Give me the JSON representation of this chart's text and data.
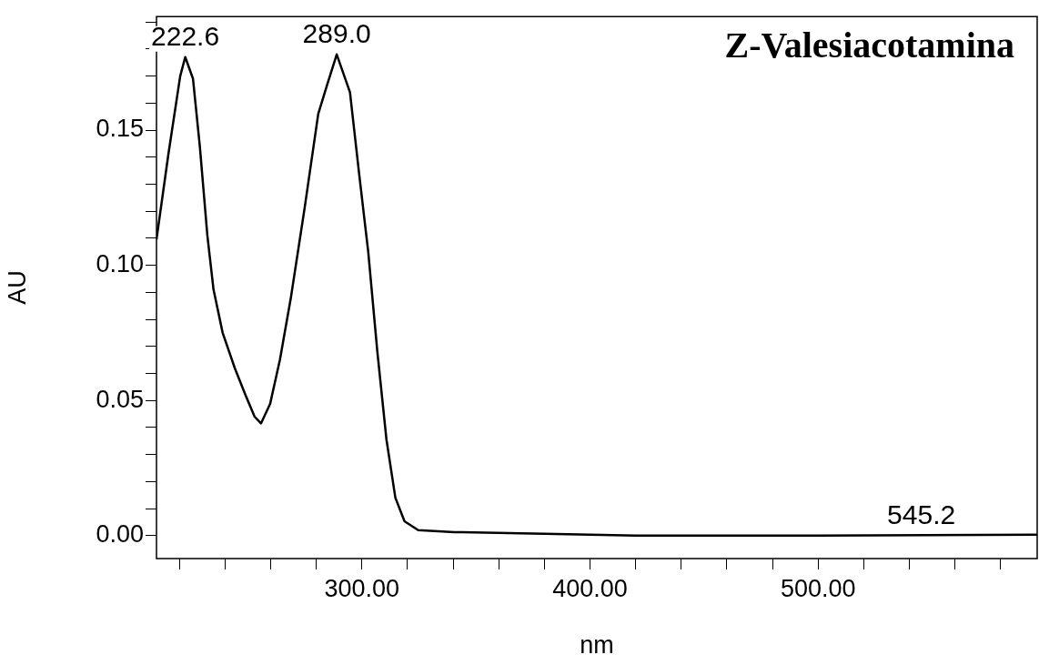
{
  "chart_data": {
    "type": "line",
    "title": "Z-Valesiacotamina",
    "xlabel": "nm",
    "ylabel": "AU",
    "x": [
      210,
      215.2,
      220.4,
      222.6,
      226,
      229,
      232.3,
      235,
      239,
      244.3,
      249,
      253,
      255.8,
      259.8,
      264.1,
      268.9,
      274.9,
      280.9,
      284.9,
      289.0,
      294.8,
      298.8,
      302.8,
      306.8,
      310.8,
      314.7,
      318.7,
      324.7,
      340.6,
      380,
      420,
      500,
      596
    ],
    "series": [
      {
        "color": "#000000",
        "values": [
          0.1095,
          0.141,
          0.17,
          0.177,
          0.169,
          0.144,
          0.111,
          0.091,
          0.075,
          0.062,
          0.052,
          0.044,
          0.0415,
          0.0487,
          0.065,
          0.088,
          0.121,
          0.156,
          0.167,
          0.178,
          0.164,
          0.134,
          0.105,
          0.068,
          0.0355,
          0.014,
          0.0053,
          0.002,
          0.0013,
          0.0007,
          0,
          0,
          0.0003
        ]
      }
    ],
    "annotations": [
      {
        "text": "222.6",
        "x": 222.6,
        "y": 0.177
      },
      {
        "text": "289.0",
        "x": 289.0,
        "y": 0.178
      },
      {
        "text": "545.2",
        "x": 545.2,
        "y": 0
      }
    ],
    "xlim": [
      210,
      596
    ],
    "xticks": [
      {
        "value": 220,
        "label": null
      },
      {
        "value": 240,
        "label": null
      },
      {
        "value": 260,
        "label": null
      },
      {
        "value": 280,
        "label": null
      },
      {
        "value": 300,
        "label": "300.00"
      },
      {
        "value": 320,
        "label": null
      },
      {
        "value": 340,
        "label": null
      },
      {
        "value": 360,
        "label": null
      },
      {
        "value": 380,
        "label": null
      },
      {
        "value": 400,
        "label": "400.00"
      },
      {
        "value": 420,
        "label": null
      },
      {
        "value": 440,
        "label": null
      },
      {
        "value": 460,
        "label": null
      },
      {
        "value": 480,
        "label": null
      },
      {
        "value": 500,
        "label": "500.00"
      },
      {
        "value": 520,
        "label": null
      },
      {
        "value": 540,
        "label": null
      },
      {
        "value": 560,
        "label": null
      },
      {
        "value": 580,
        "label": null
      }
    ],
    "ylim": [
      -0.0085,
      0.192
    ],
    "yticks": [
      {
        "value": 0,
        "label": "0.00"
      },
      {
        "value": 0.01,
        "label": null
      },
      {
        "value": 0.02,
        "label": null
      },
      {
        "value": 0.03,
        "label": null
      },
      {
        "value": 0.04,
        "label": null
      },
      {
        "value": 0.05,
        "label": "0.05"
      },
      {
        "value": 0.06,
        "label": null
      },
      {
        "value": 0.07,
        "label": null
      },
      {
        "value": 0.08,
        "label": null
      },
      {
        "value": 0.09,
        "label": null
      },
      {
        "value": 0.1,
        "label": "0.10"
      },
      {
        "value": 0.11,
        "label": null
      },
      {
        "value": 0.12,
        "label": null
      },
      {
        "value": 0.13,
        "label": null
      },
      {
        "value": 0.14,
        "label": null
      },
      {
        "value": 0.15,
        "label": "0.15"
      },
      {
        "value": 0.16,
        "label": null
      },
      {
        "value": 0.17,
        "label": null
      },
      {
        "value": 0.18,
        "label": null
      },
      {
        "value": 0.19,
        "label": null
      }
    ],
    "grid": false,
    "legend": false,
    "marker": "none",
    "line_style": "solid"
  }
}
